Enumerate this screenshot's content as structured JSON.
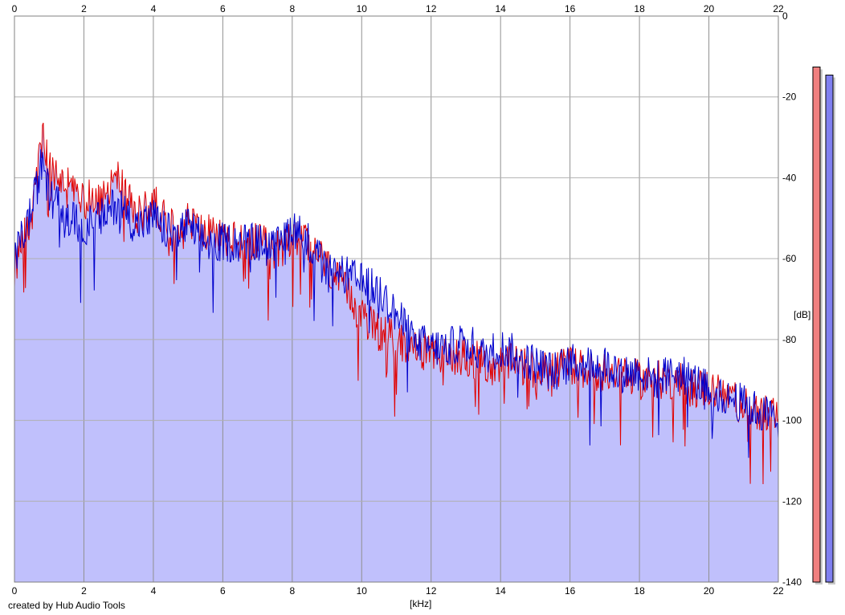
{
  "chart_data": {
    "type": "area",
    "xlabel": "[kHz]",
    "ylabel": "[dB]",
    "xlim": [
      0,
      22
    ],
    "ylim": [
      -140,
      0
    ],
    "x_ticks": [
      "0",
      "2",
      "4",
      "6",
      "8",
      "10",
      "12",
      "14",
      "16",
      "18",
      "20",
      "22"
    ],
    "y_ticks": [
      "0",
      "-20",
      "-40",
      "-60",
      "-80",
      "-100",
      "-120",
      "-140"
    ],
    "grid": true,
    "x": [
      0,
      0.5,
      0.8,
      1,
      1.5,
      2,
      2.5,
      3,
      3.5,
      4,
      4.5,
      5,
      5.5,
      6,
      6.5,
      7,
      7.5,
      8,
      8.5,
      9,
      9.5,
      10,
      10.5,
      11,
      11.5,
      12,
      12.5,
      13,
      13.5,
      14,
      14.5,
      15,
      15.5,
      16,
      16.5,
      17,
      17.5,
      18,
      18.5,
      19,
      19.5,
      20,
      20.5,
      21,
      21.5,
      22
    ],
    "series": [
      {
        "color": "#e00000",
        "values": [
          -58,
          -50,
          -30,
          -38,
          -42,
          -46,
          -44,
          -40,
          -50,
          -46,
          -52,
          -50,
          -54,
          -54,
          -56,
          -56,
          -58,
          -54,
          -56,
          -62,
          -68,
          -74,
          -78,
          -80,
          -82,
          -84,
          -84,
          -84,
          -86,
          -86,
          -86,
          -88,
          -88,
          -86,
          -88,
          -88,
          -88,
          -90,
          -90,
          -90,
          -92,
          -92,
          -94,
          -96,
          -98,
          -100
        ]
      },
      {
        "color": "#0000cc",
        "values": [
          -60,
          -48,
          -36,
          -44,
          -50,
          -52,
          -50,
          -46,
          -52,
          -50,
          -54,
          -52,
          -56,
          -56,
          -56,
          -56,
          -58,
          -52,
          -56,
          -64,
          -64,
          -66,
          -68,
          -74,
          -80,
          -82,
          -82,
          -80,
          -84,
          -82,
          -84,
          -86,
          -88,
          -86,
          -86,
          -86,
          -88,
          -88,
          -90,
          -88,
          -90,
          -92,
          -94,
          -96,
          -98,
          -100
        ]
      }
    ],
    "channel_levels": [
      {
        "color": "#f08080",
        "level_db": -12.6
      },
      {
        "color": "#8080f0",
        "level_db": -14.6
      }
    ]
  },
  "footer": {
    "credit": "created by Hub Audio Tools"
  },
  "colors": {
    "fill": "#c0c0fc",
    "grid": "#909090",
    "background": "#ffffff"
  }
}
